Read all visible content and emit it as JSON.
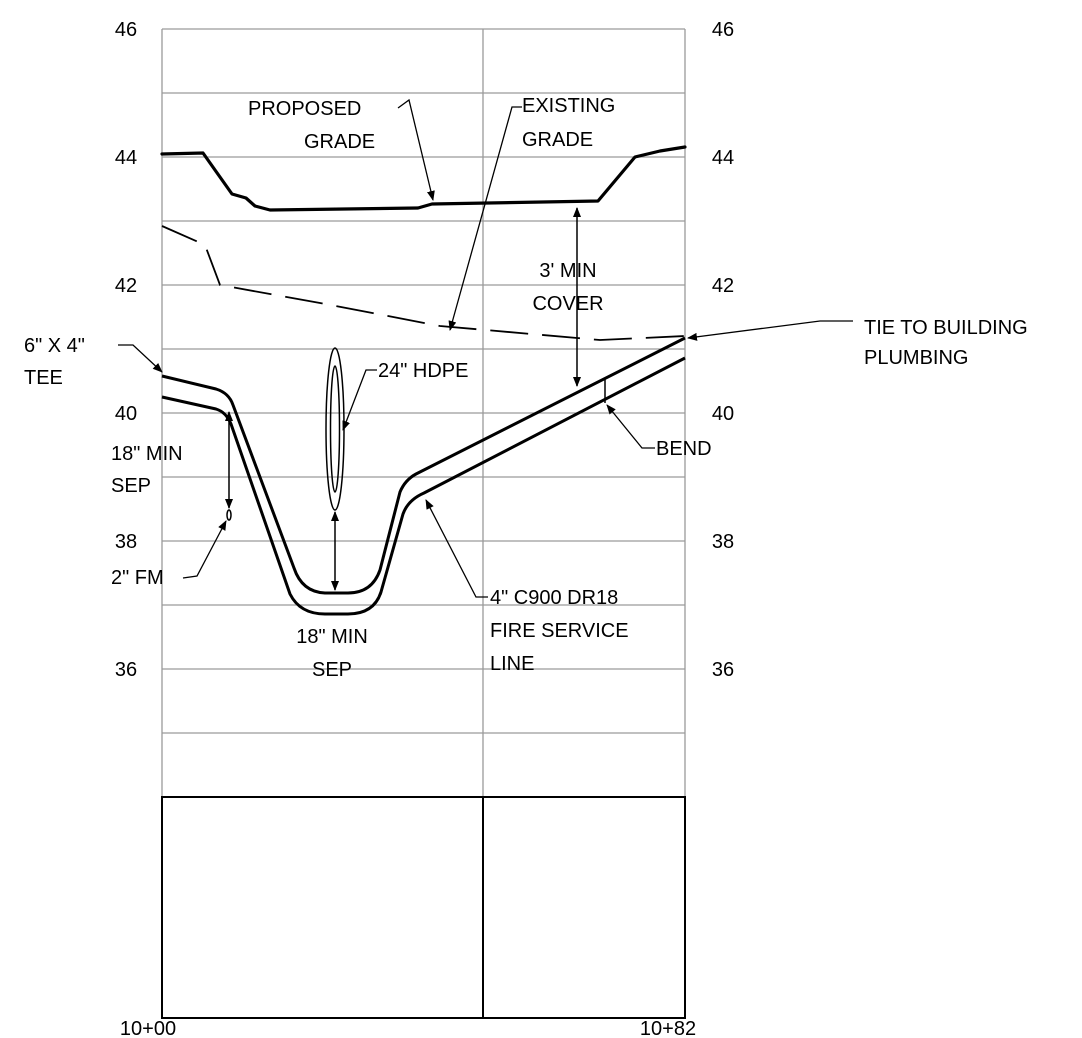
{
  "elevation_labels": {
    "left": [
      "46",
      "44",
      "42",
      "40",
      "38",
      "36"
    ],
    "right": [
      "46",
      "44",
      "42",
      "40",
      "38",
      "36"
    ]
  },
  "stations": {
    "start": "10+00",
    "end": "10+82"
  },
  "callouts": {
    "proposed_grade": [
      "PROPOSED",
      "GRADE"
    ],
    "existing_grade": [
      "EXISTING",
      "GRADE"
    ],
    "min_cover": [
      "3' MIN",
      "COVER"
    ],
    "tie_to_building": [
      "TIE TO BUILDING",
      "PLUMBING"
    ],
    "tee": [
      "6\" X 4\"",
      "TEE"
    ],
    "hdpe": "24\" HDPE",
    "bend": "BEND",
    "min_sep_left": [
      "18\" MIN",
      "SEP"
    ],
    "forcemain": "2\" FM",
    "min_sep_bottom": [
      "18\" MIN",
      "SEP"
    ],
    "fire_line": [
      "4\" C900 DR18",
      "FIRE SERVICE",
      "LINE"
    ]
  },
  "colors": {
    "line": "#000000",
    "grid": "#9a9a9a",
    "background": "#ffffff"
  }
}
